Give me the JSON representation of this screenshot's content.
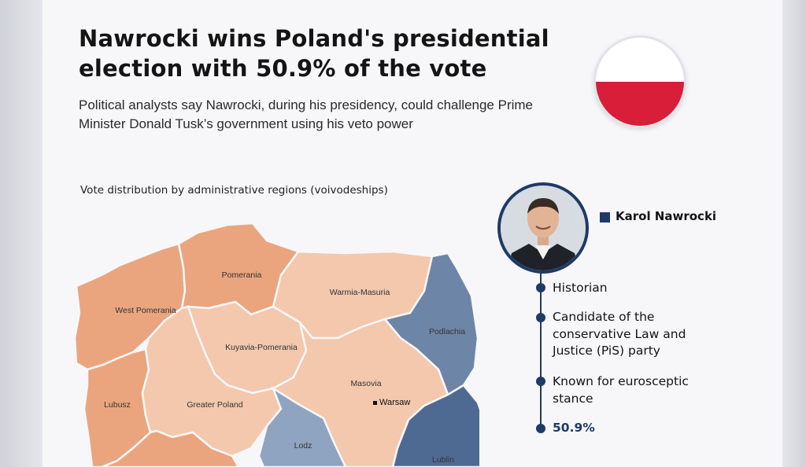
{
  "headline": "Nawrocki wins Poland's presidential election with 50.9% of the vote",
  "subheadline": "Political analysts say Nawrocki, during his presidency, could challenge Prime Minister Donald Tusk’s government using his veto power",
  "map": {
    "label": "Vote distribution by administrative regions (voivodeships)",
    "colors": {
      "nawrocki_strong": "#eaa57f",
      "nawrocki_light": "#f3c8ad",
      "opponent_light": "#8fa4c0",
      "opponent_mid": "#6d86a8",
      "opponent_dark": "#4f6a92"
    },
    "regions": [
      {
        "name": "West Pomerania",
        "leaning": "nawrocki_strong"
      },
      {
        "name": "Pomerania",
        "leaning": "nawrocki_strong"
      },
      {
        "name": "Warmia-Masuria",
        "leaning": "nawrocki_light"
      },
      {
        "name": "Podlachia",
        "leaning": "opponent_mid"
      },
      {
        "name": "Kuyavia-Pomerania",
        "leaning": "nawrocki_light"
      },
      {
        "name": "Masovia",
        "leaning": "nawrocki_light"
      },
      {
        "name": "Lubusz",
        "leaning": "nawrocki_strong"
      },
      {
        "name": "Greater Poland",
        "leaning": "nawrocki_light"
      },
      {
        "name": "Lodz",
        "leaning": "opponent_light"
      },
      {
        "name": "Lublin",
        "leaning": "opponent_dark"
      }
    ],
    "city": "Warsaw"
  },
  "candidate": {
    "name": "Karol Nawrocki",
    "accent_color": "#1e3a66",
    "facts": [
      "Historian",
      "Candidate of the conservative Law and Justice (PiS) party",
      "Known for eurosceptic stance"
    ],
    "vote_share": "50.9%"
  },
  "flag": {
    "top": "#ffffff",
    "bottom": "#d81e38"
  }
}
